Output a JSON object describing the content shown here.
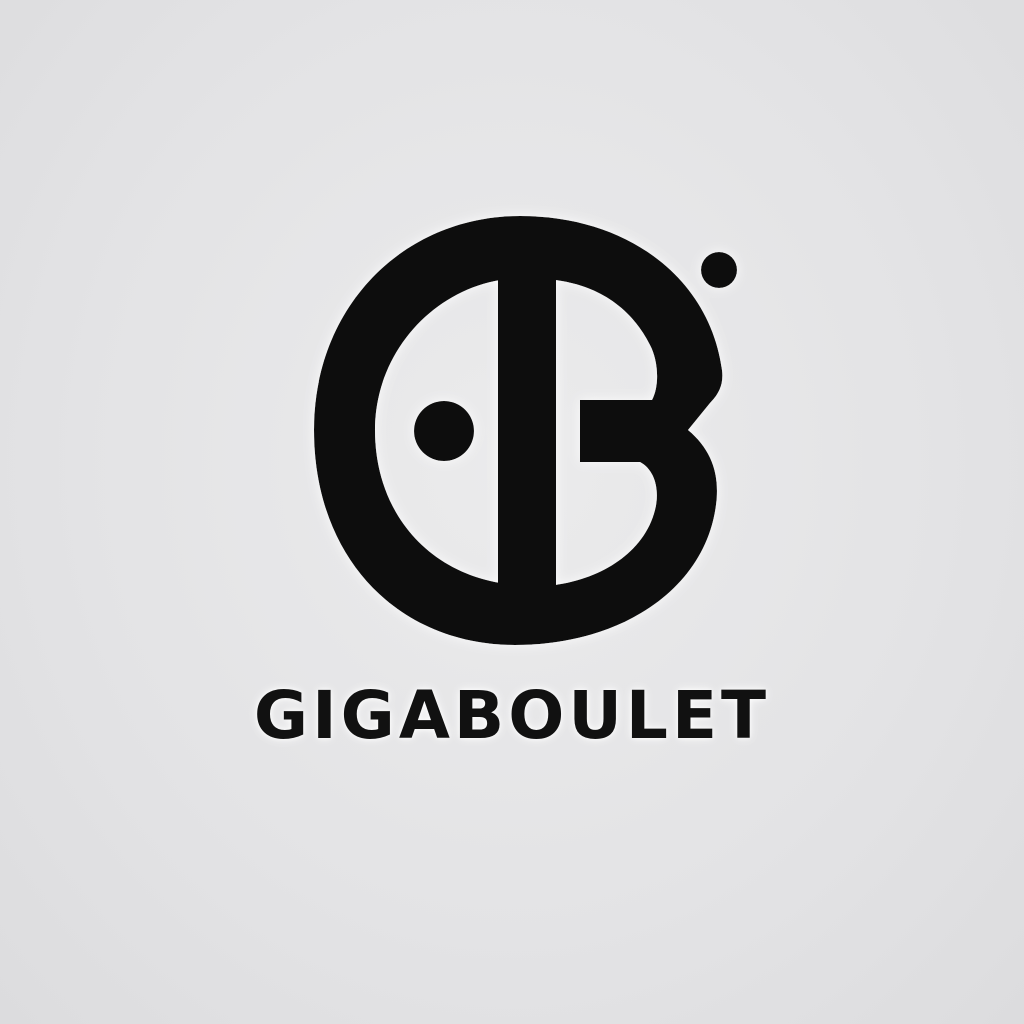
{
  "brand": {
    "name": "GIGABOULET",
    "ink_color": "#111111",
    "background_color": "#e5e5e7"
  },
  "icons": {
    "mark": "circular-gb-monogram-icon",
    "dot_inner": "dot-icon",
    "dot_outer": "dot-icon"
  }
}
